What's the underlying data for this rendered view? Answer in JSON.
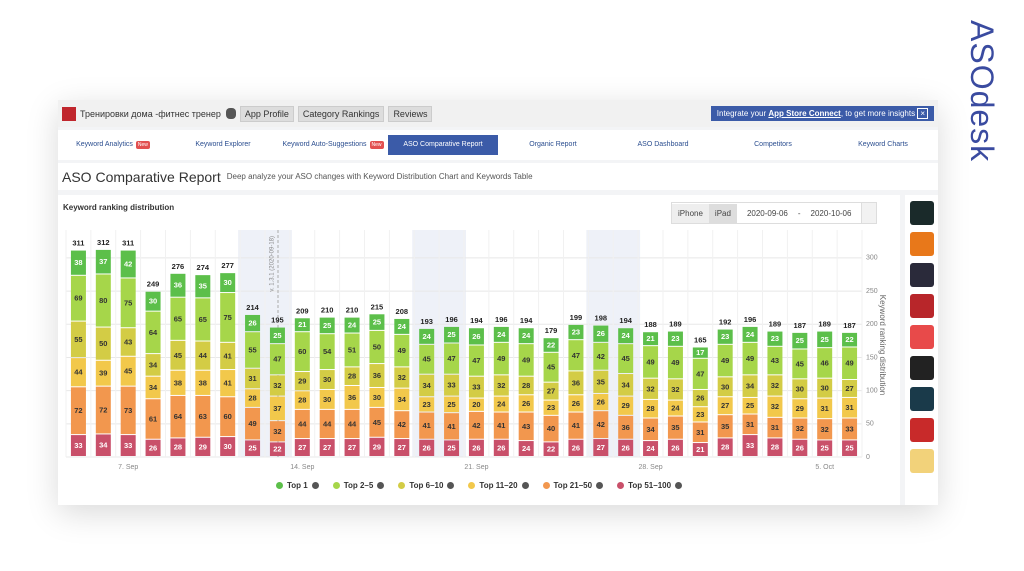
{
  "brand": "ASOdesk",
  "header": {
    "app_name": "Тренировки дома -фитнес тренер",
    "buttons": [
      "App Profile",
      "Category Rankings",
      "Reviews"
    ],
    "integrate": {
      "pre": "Integrate your",
      "link": "App Store Connect",
      "post": ", to get more insights"
    }
  },
  "nav": [
    {
      "label": "Keyword Analytics",
      "badge": "New"
    },
    {
      "label": "Keyword Explorer"
    },
    {
      "label": "Keyword Auto-Suggestions",
      "badge": "New"
    },
    {
      "label": "ASO Comparative Report"
    },
    {
      "label": "Organic Report"
    },
    {
      "label": "ASO Dashboard"
    },
    {
      "label": "Competitors"
    },
    {
      "label": "Keyword Charts"
    }
  ],
  "page_title": "ASO Comparative Report",
  "page_subtitle": "Deep analyze your ASO changes with Keyword Distribution Chart and Keywords Table",
  "devices": [
    "iPhone",
    "iPad"
  ],
  "date_from": "2020-09-06",
  "date_sep": "-",
  "date_to": "2020-10-06",
  "chart_data": {
    "type": "stacked_bar",
    "title": "Keyword ranking distribution",
    "y2label": "Keyword ranking distribution",
    "categories": [
      null,
      null,
      "7. Sep",
      null,
      null,
      null,
      null,
      null,
      null,
      "14. Sep",
      null,
      null,
      null,
      null,
      null,
      null,
      "21. Sep",
      null,
      null,
      null,
      null,
      null,
      null,
      "28. Sep",
      null,
      null,
      null,
      null,
      null,
      null,
      "5. Oct",
      null
    ],
    "annotations": [
      {
        "label": "v. 1.3.1 (2020-09-18)"
      }
    ],
    "y2lim": [
      0,
      342
    ],
    "y2ticks": [
      0,
      50,
      100,
      150,
      200,
      250,
      300
    ],
    "grid": true,
    "totals": [
      311,
      312,
      311,
      249,
      276,
      274,
      277,
      214,
      195,
      209,
      210,
      210,
      215,
      208,
      193,
      196,
      194,
      196,
      194,
      179,
      199,
      198,
      194,
      188,
      189,
      165,
      192,
      196,
      189,
      187,
      189,
      187
    ],
    "series": [
      {
        "name": "Top 1",
        "color": "#5cbf4a",
        "axis": "y2",
        "values": [
          38,
          37,
          42,
          30,
          36,
          35,
          30,
          26,
          25,
          21,
          25,
          24,
          25,
          24,
          24,
          25,
          26,
          24,
          24,
          22,
          23,
          26,
          24,
          21,
          23,
          17,
          23,
          24,
          23,
          25,
          25,
          22
        ]
      },
      {
        "name": "Top 2–5",
        "color": "#a6d64a",
        "axis": "y2",
        "values": [
          69,
          80,
          75,
          64,
          65,
          65,
          75,
          55,
          47,
          60,
          54,
          51,
          50,
          49,
          45,
          47,
          47,
          49,
          49,
          45,
          47,
          42,
          45,
          49,
          49,
          47,
          49,
          49,
          43,
          45,
          46,
          49
        ]
      },
      {
        "name": "Top 6–10",
        "color": "#d3cc45",
        "axis": "y2",
        "values": [
          55,
          50,
          43,
          34,
          45,
          44,
          41,
          31,
          32,
          29,
          30,
          28,
          36,
          32,
          34,
          33,
          33,
          32,
          28,
          27,
          36,
          35,
          34,
          32,
          32,
          26,
          30,
          34,
          32,
          30,
          30,
          27
        ]
      },
      {
        "name": "Top 11–20",
        "color": "#f2c84b",
        "axis": "y2",
        "values": [
          44,
          39,
          45,
          34,
          38,
          38,
          41,
          28,
          37,
          28,
          30,
          36,
          30,
          34,
          23,
          25,
          20,
          24,
          26,
          23,
          26,
          26,
          29,
          28,
          24,
          23,
          27,
          25,
          32,
          29,
          31,
          31
        ]
      },
      {
        "name": "Top 21–50",
        "color": "#f2974e",
        "axis": "y2",
        "values": [
          72,
          72,
          73,
          61,
          64,
          63,
          60,
          49,
          32,
          44,
          44,
          44,
          45,
          42,
          41,
          41,
          42,
          41,
          43,
          40,
          41,
          42,
          36,
          34,
          35,
          31,
          35,
          31,
          31,
          32,
          32,
          33
        ]
      },
      {
        "name": "Top 51–100",
        "color": "#c9506a",
        "axis": "y2",
        "values": [
          33,
          34,
          33,
          26,
          28,
          29,
          30,
          25,
          22,
          27,
          27,
          27,
          29,
          27,
          26,
          25,
          26,
          26,
          24,
          22,
          26,
          27,
          26,
          24,
          26,
          21,
          28,
          33,
          28,
          26,
          25,
          25
        ]
      }
    ]
  }
}
